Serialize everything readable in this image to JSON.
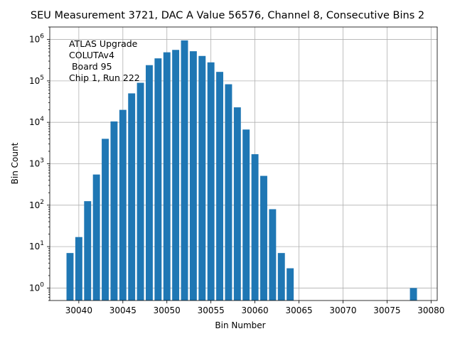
{
  "chart_data": {
    "type": "bar",
    "title": "SEU Measurement 3721, DAC A Value 56576, Channel 8, Consecutive Bins 2",
    "xlabel": "Bin Number",
    "ylabel": "Bin Count",
    "yscale": "log",
    "xlim": [
      30036.7,
      30080.7
    ],
    "ylim": [
      0.5,
      2000000
    ],
    "grid": true,
    "xticks": [
      30040,
      30045,
      30050,
      30055,
      30060,
      30065,
      30070,
      30075,
      30080
    ],
    "yticks": [
      {
        "value": 1,
        "base": "10",
        "exp": "0"
      },
      {
        "value": 10,
        "base": "10",
        "exp": "1"
      },
      {
        "value": 100,
        "base": "10",
        "exp": "2"
      },
      {
        "value": 1000,
        "base": "10",
        "exp": "3"
      },
      {
        "value": 10000,
        "base": "10",
        "exp": "4"
      },
      {
        "value": 100000,
        "base": "10",
        "exp": "5"
      },
      {
        "value": 1000000,
        "base": "10",
        "exp": "6"
      }
    ],
    "bar_width": 0.8,
    "x": [
      30039,
      30040,
      30041,
      30042,
      30043,
      30044,
      30045,
      30046,
      30047,
      30048,
      30049,
      30050,
      30051,
      30052,
      30053,
      30054,
      30055,
      30056,
      30057,
      30058,
      30059,
      30060,
      30061,
      30062,
      30063,
      30064,
      30078
    ],
    "values": [
      7,
      17,
      125,
      550,
      4000,
      10500,
      20000,
      50000,
      90000,
      240000,
      350000,
      490000,
      560000,
      950000,
      520000,
      400000,
      280000,
      165000,
      83000,
      23000,
      6700,
      1700,
      510,
      80,
      7,
      3,
      1
    ],
    "annotation": [
      "ATLAS Upgrade",
      "COLUTAv4",
      " Board 95",
      "Chip 1, Run 222"
    ],
    "annotation_position": "top-left"
  }
}
